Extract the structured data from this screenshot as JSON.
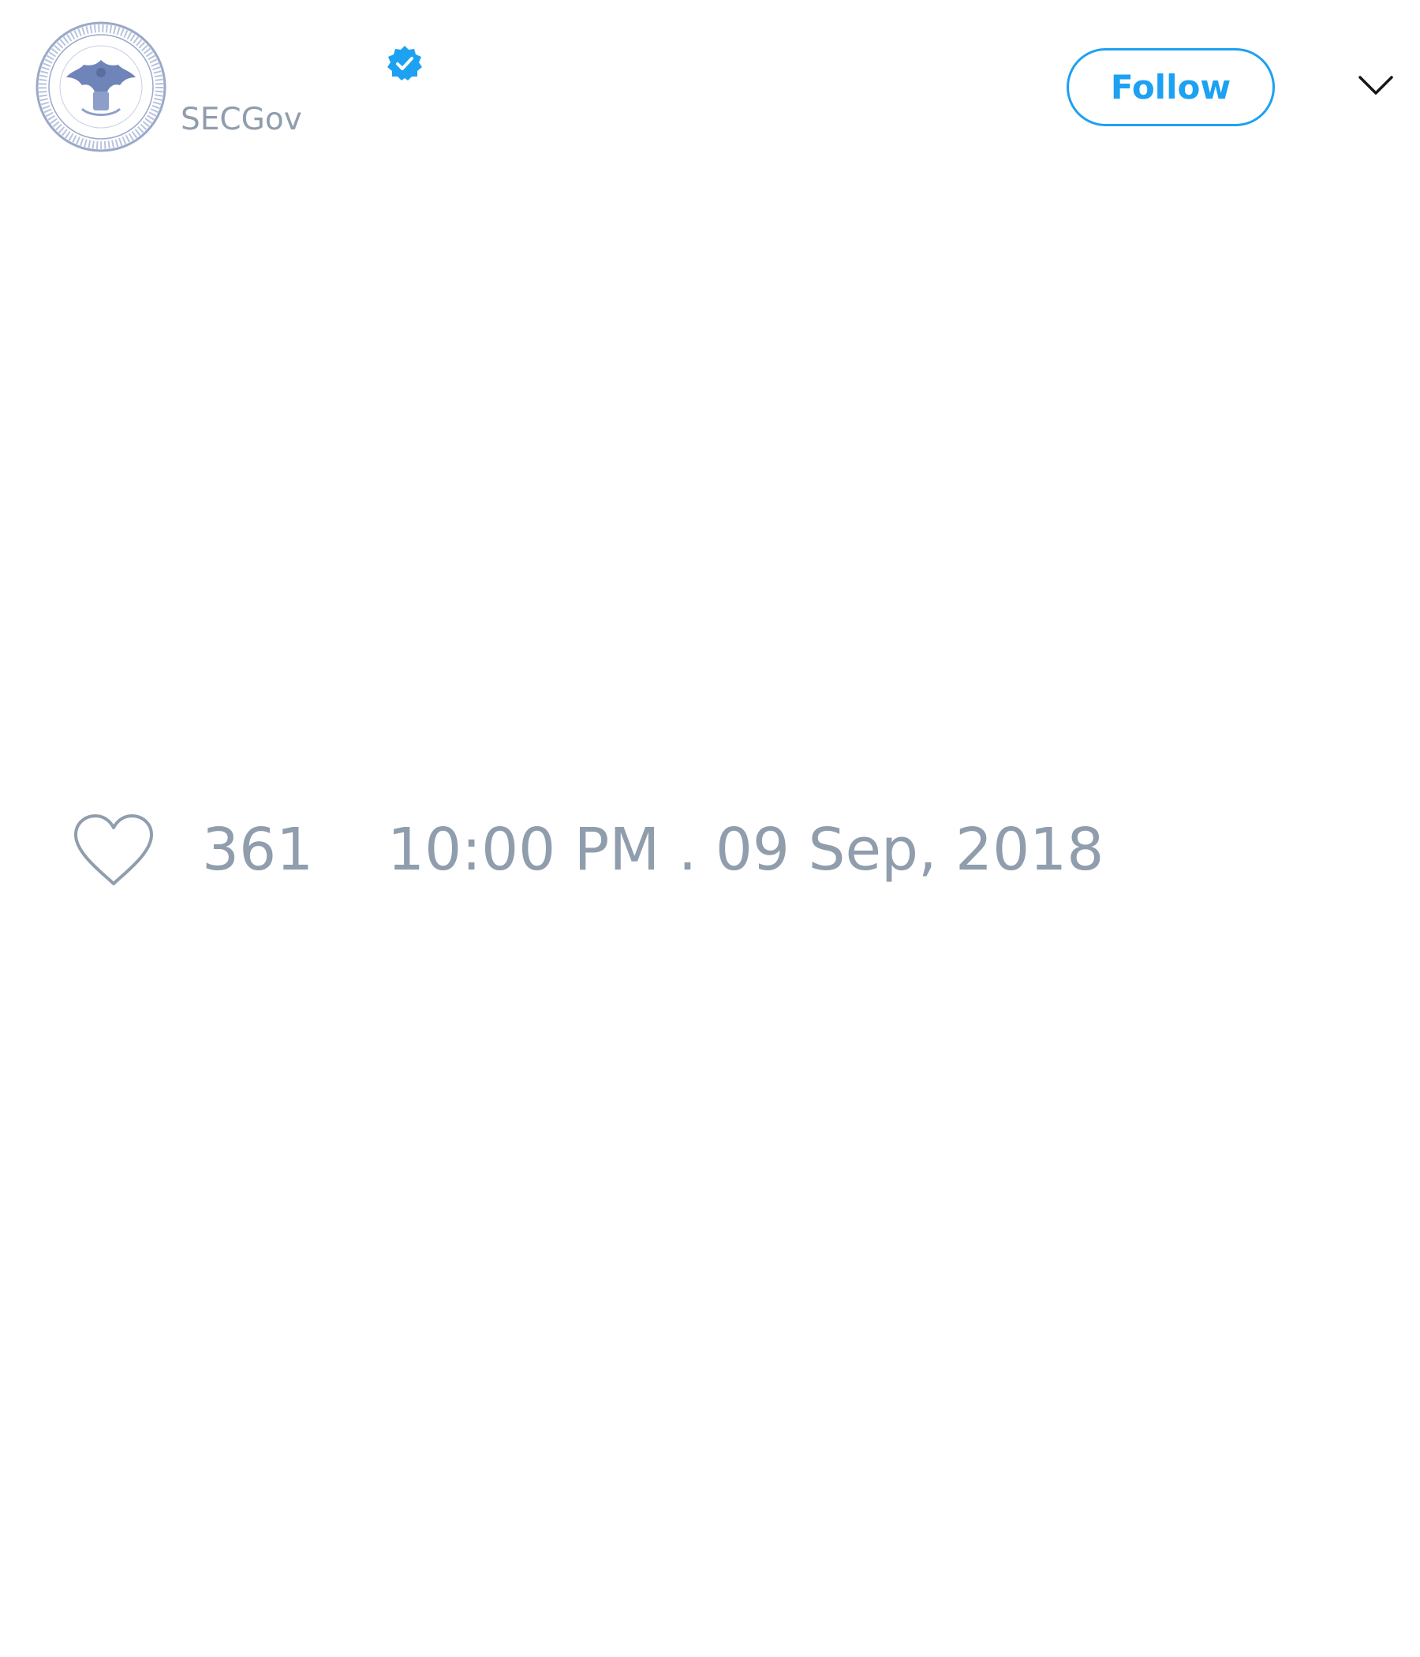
{
  "header": {
    "handle": "SECGov",
    "avatar_icon": "sec-seal-icon",
    "verified_icon": "verified-badge-icon",
    "follow_label": "Follow",
    "menu_icon": "chevron-down-icon"
  },
  "tweet": {
    "like_icon": "heart-icon",
    "like_count": "361",
    "timestamp": "10:00 PM . 09 Sep, 2018"
  },
  "colors": {
    "accent": "#1da1f2",
    "muted_text": "#8f9dad",
    "background": "#ffffff"
  }
}
